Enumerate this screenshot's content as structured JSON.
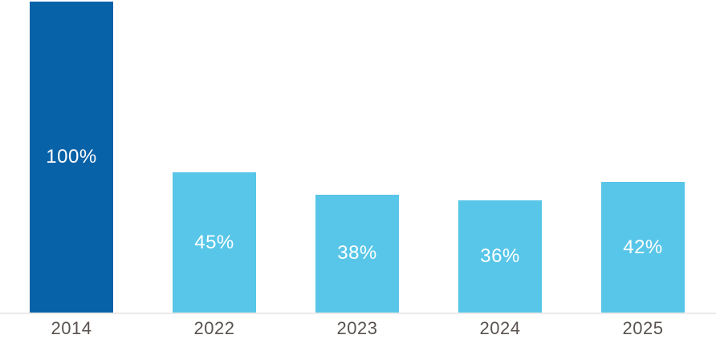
{
  "chart_data": {
    "type": "bar",
    "title": "",
    "xlabel": "",
    "ylabel": "",
    "categories": [
      "2014",
      "2022",
      "2023",
      "2024",
      "2025"
    ],
    "values": [
      100,
      45,
      38,
      36,
      42
    ],
    "value_labels": [
      "100%",
      "45%",
      "38%",
      "36%",
      "42%"
    ],
    "ylim": [
      0,
      100
    ],
    "grid": false,
    "legend": null,
    "highlight_index": 0,
    "colors": {
      "highlight_bar": "#0862A8",
      "default_bar": "#58C6E8",
      "value_label_text": "#FFFFFF",
      "axis_line": "#ECEAE8",
      "tick_label_text": "#5A524F"
    }
  }
}
